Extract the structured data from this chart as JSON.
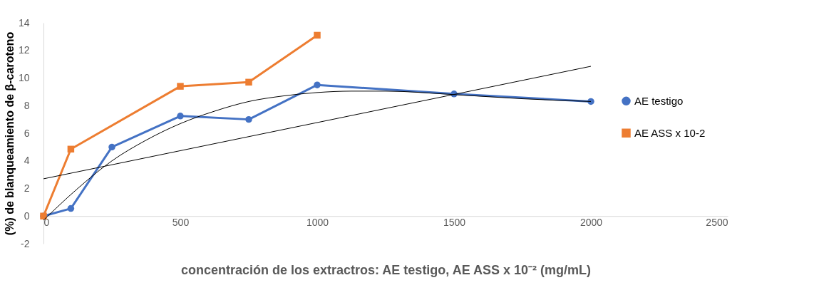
{
  "chart_data": {
    "type": "line",
    "xlabel": "concentración de los extractros: AE testigo, AE ASS x 10⁻² (mg/mL)",
    "ylabel": "(%) de blanqueamiento de β-caroteno",
    "xlim": [
      0,
      2500
    ],
    "xticks": [
      0,
      500,
      1000,
      1500,
      2000,
      2500
    ],
    "ylim": [
      -2,
      14
    ],
    "yticks": [
      -2,
      0,
      2,
      4,
      6,
      8,
      10,
      12,
      14
    ],
    "grid": false,
    "legend": "right",
    "series": [
      {
        "name": "AE testigo",
        "color": "#4472c4",
        "marker": "circle",
        "x": [
          0,
          100,
          250,
          500,
          750,
          1000,
          1500,
          2000
        ],
        "values": [
          0,
          0.55,
          5.0,
          7.25,
          7.0,
          9.5,
          8.85,
          8.3
        ]
      },
      {
        "name": "AE ASS x 10-2",
        "color": "#ed7d31",
        "marker": "square",
        "x": [
          0,
          100,
          500,
          750,
          1000
        ],
        "values": [
          0,
          4.85,
          9.4,
          9.7,
          13.1
        ]
      },
      {
        "color": "#000000",
        "marker": "none",
        "x": [
          0,
          2000
        ],
        "values": [
          2.7,
          10.85
        ]
      },
      {
        "color": "#000000",
        "marker": "none",
        "x": [
          0,
          125,
          250,
          375,
          500,
          625,
          750,
          875,
          1000,
          1125,
          1250,
          1500,
          1750,
          2000
        ],
        "values": [
          -0.3,
          2.0,
          4.0,
          5.5,
          6.7,
          7.6,
          8.3,
          8.7,
          8.95,
          9.05,
          9.05,
          8.8,
          8.5,
          8.3
        ]
      }
    ]
  }
}
